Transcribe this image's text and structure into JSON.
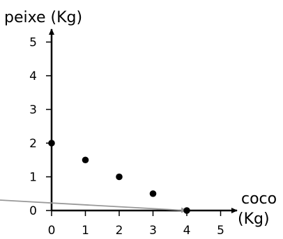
{
  "chart_data": {
    "type": "scatter",
    "xlabel_line1": "coco",
    "xlabel_line2": "(Kg)",
    "ylabel": "peixe (Kg)",
    "xlim": [
      0,
      5
    ],
    "ylim": [
      0,
      5
    ],
    "x_ticks": [
      0,
      1,
      2,
      3,
      4,
      5
    ],
    "y_ticks": [
      0,
      1,
      2,
      3,
      4,
      5
    ],
    "grid": false,
    "points": [
      {
        "x": 0,
        "y": 2
      },
      {
        "x": 1,
        "y": 1.5
      },
      {
        "x": 2,
        "y": 1
      },
      {
        "x": 3,
        "y": 0.5
      },
      {
        "x": 4,
        "y": 0
      }
    ],
    "line_color": "#000000",
    "marker_color": "#000000",
    "annotation_arrow": {
      "color": "#999999",
      "to": {
        "x": 4,
        "y": 0
      }
    }
  }
}
